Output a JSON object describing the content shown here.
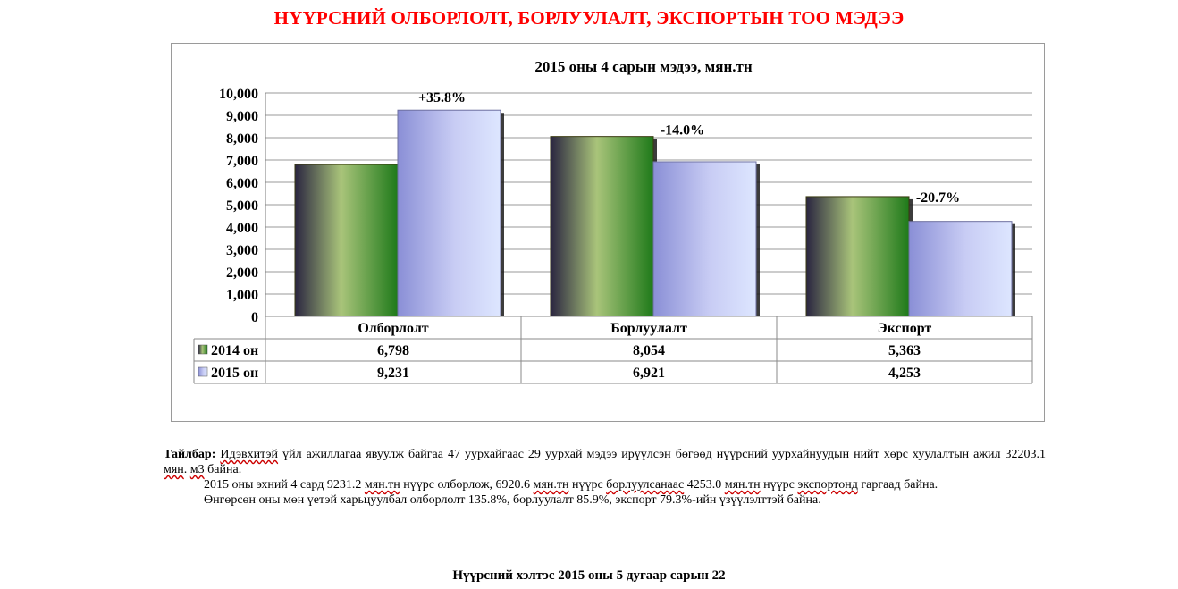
{
  "title": "НҮҮРСНИЙ ОЛБОРЛОЛТ, БОРЛУУЛАЛТ, ЭКСПОРТЫН ТОО МЭДЭЭ",
  "chart_data": {
    "type": "bar",
    "title": "2015 оны 4 сарын мэдээ, мян.тн",
    "categories": [
      "Олборлолт",
      "Борлуулалт",
      "Экспорт"
    ],
    "series": [
      {
        "name": "2014 он",
        "values": [
          6798,
          8054,
          5363
        ],
        "labels": [
          "6,798",
          "8,054",
          "5,363"
        ],
        "color": "#3f8f2a"
      },
      {
        "name": "2015 он",
        "values": [
          9231,
          6921,
          4253
        ],
        "labels": [
          "9,231",
          "6,921",
          "4,253"
        ],
        "color": "#aab0e8"
      }
    ],
    "changes": [
      "+35.8%",
      "-14.0%",
      "-20.7%"
    ],
    "yticks": [
      "0",
      "1,000",
      "2,000",
      "3,000",
      "4,000",
      "5,000",
      "6,000",
      "7,000",
      "8,000",
      "9,000",
      "10,000"
    ],
    "ylim": [
      0,
      10000
    ],
    "grid": true,
    "legend": "data-table"
  },
  "notes": {
    "label": "Тайлбар:",
    "para1_pre": " ",
    "para1_w1": "Идэвхитэй",
    "para1_rest": " үйл ажиллагаа явуулж байгаа 47 уурхайгаас 29 уурхай мэдээ ирүүлсэн бөгөөд нүүрсний уурхайнуудын нийт хөрс хуулалтын ажил 32203.1 ",
    "para1_w2": "мян",
    "para1_mid": ". ",
    "para1_w3": "м3",
    "para1_end": " байна.",
    "para2_a": "2015 оны эхний 4 сард 9231.2  ",
    "para2_w1": "мян.тн",
    "para2_b": " нүүрс олборлож, 6920.6 ",
    "para2_w2": "мян.тн",
    "para2_c": " нүүрс ",
    "para2_w3": "борлуулсанаас",
    "para2_d": " 4253.0 ",
    "para2_w4": "мян.тн",
    "para2_e": " нүүрс ",
    "para2_w5": "экспортонд",
    "para2_f": " гаргаад байна.",
    "para3": "Өнгөрсөн оны мөн үетэй харьцуулбал олборлолт 135.8%, борлуулалт 85.9%, экспорт 79.3%-ийн үзүүлэлттэй байна."
  },
  "footer": "Нүүрсний хэлтэс 2015 оны 5 дугаар сарын 22"
}
